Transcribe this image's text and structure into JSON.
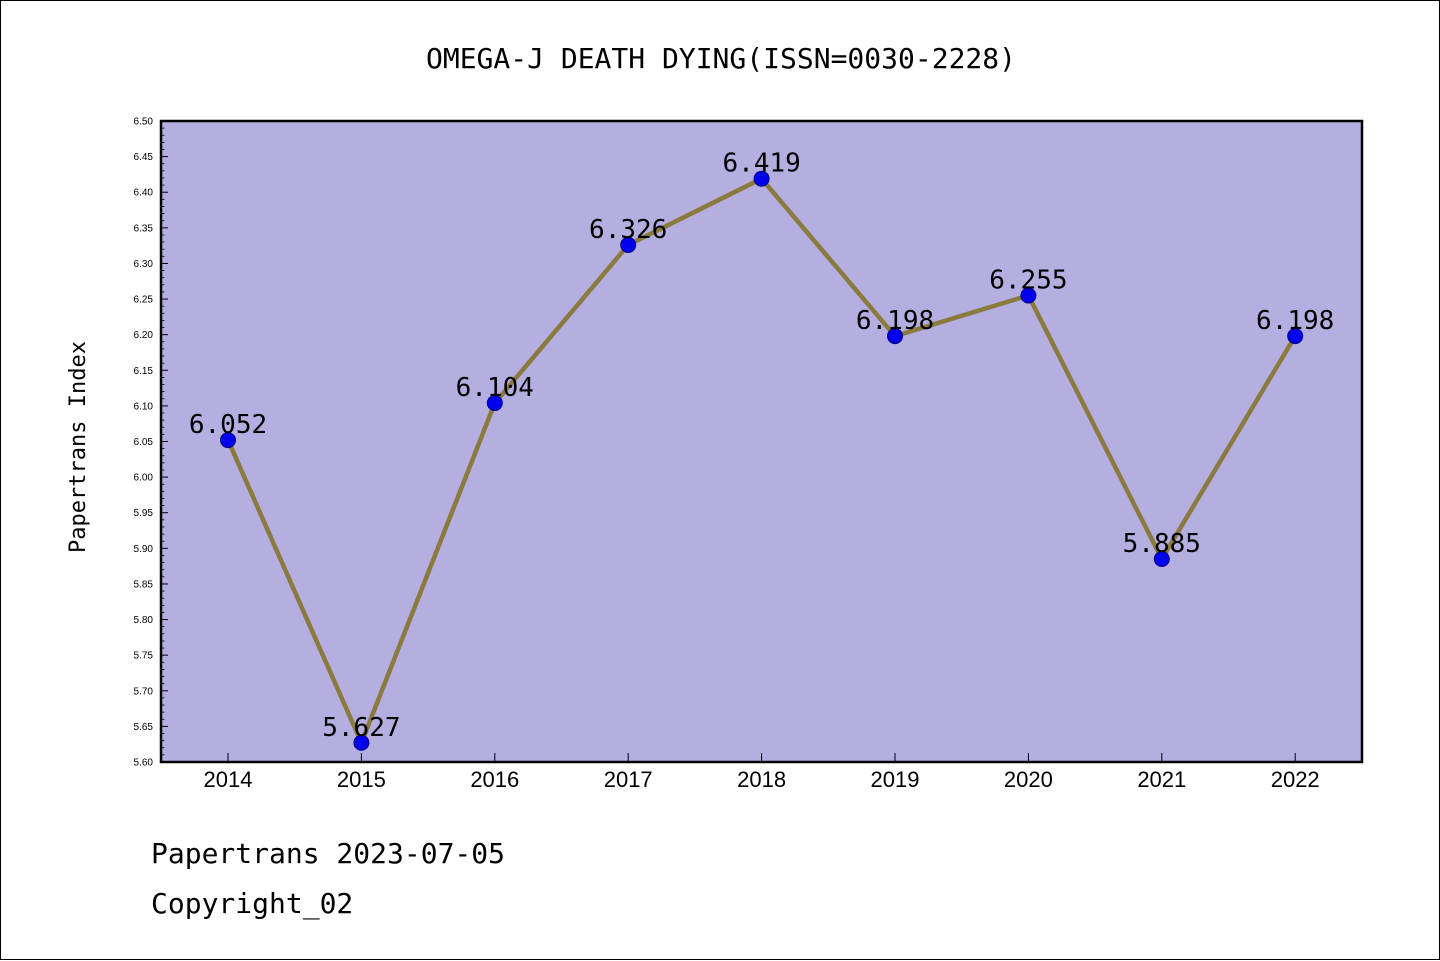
{
  "chart_data": {
    "type": "line",
    "title": "OMEGA-J DEATH DYING(ISSN=0030-2228)",
    "xlabel": "",
    "ylabel": "Papertrans Index",
    "categories": [
      "2014",
      "2015",
      "2016",
      "2017",
      "2018",
      "2019",
      "2020",
      "2021",
      "2022"
    ],
    "values": [
      6.052,
      5.627,
      6.104,
      6.326,
      6.419,
      6.198,
      6.255,
      5.885,
      6.198
    ],
    "data_labels": [
      "6.052",
      "5.627",
      "6.104",
      "6.326",
      "6.419",
      "6.198",
      "6.255",
      "5.885",
      "6.198"
    ],
    "ylim": [
      5.6,
      6.5
    ],
    "yticks": [
      "5.60",
      "5.65",
      "5.70",
      "5.75",
      "5.80",
      "5.85",
      "5.90",
      "5.95",
      "6.00",
      "6.05",
      "6.10",
      "6.15",
      "6.20",
      "6.25",
      "6.30",
      "6.35",
      "6.40",
      "6.45",
      "6.50"
    ],
    "grid": false,
    "colors": {
      "plot_background": "#b4aee1",
      "line": "#8b7a3e",
      "marker": "#0000ee",
      "marker_edge": "#00007a"
    }
  },
  "footer": {
    "line1": "Papertrans 2023-07-05",
    "line2": "Copyright_02"
  }
}
